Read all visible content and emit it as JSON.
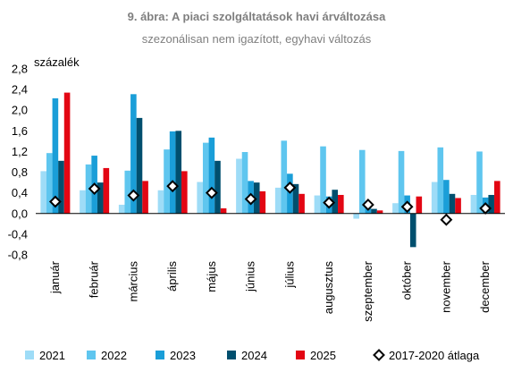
{
  "chart_data": {
    "type": "bar",
    "title": "9. ábra: A piaci szolgáltatások havi árváltozása",
    "subtitle": "szezonálisan nem igazított, egyhavi változás",
    "ylabel": "százalék",
    "ylim": [
      -0.8,
      2.8
    ],
    "yticks": [
      "2,8",
      "2,4",
      "2,0",
      "1,6",
      "1,2",
      "0,8",
      "0,4",
      "0,0",
      "-0,4",
      "-0,8"
    ],
    "yticks_values": [
      2.8,
      2.4,
      2.0,
      1.6,
      1.2,
      0.8,
      0.4,
      0.0,
      -0.4,
      -0.8
    ],
    "grid": false,
    "legend_position": "bottom",
    "categories": [
      "január",
      "február",
      "március",
      "április",
      "május",
      "június",
      "július",
      "augusztus",
      "szeptember",
      "október",
      "november",
      "december"
    ],
    "series": [
      {
        "name": "2021",
        "color": "#9edcf7",
        "values": [
          0.82,
          0.45,
          0.17,
          0.45,
          0.61,
          1.06,
          0.5,
          0.35,
          -0.1,
          0.2,
          0.61,
          0.36
        ]
      },
      {
        "name": "2022",
        "color": "#5fc6ef",
        "values": [
          1.17,
          0.95,
          0.83,
          1.24,
          1.37,
          1.19,
          1.41,
          1.3,
          1.23,
          1.21,
          1.28,
          1.2
        ]
      },
      {
        "name": "2023",
        "color": "#1a9ed8",
        "values": [
          2.23,
          1.12,
          2.31,
          1.59,
          1.47,
          0.63,
          0.77,
          0.33,
          0.17,
          0.35,
          0.65,
          0.31
        ]
      },
      {
        "name": "2024",
        "color": "#004f6e",
        "values": [
          1.02,
          0.6,
          1.85,
          1.6,
          1.02,
          0.6,
          0.57,
          0.46,
          0.09,
          -0.65,
          0.38,
          0.36
        ]
      },
      {
        "name": "2025",
        "color": "#e30613",
        "values": [
          2.34,
          0.88,
          0.63,
          0.82,
          0.1,
          0.43,
          0.38,
          0.36,
          0.06,
          0.33,
          0.3,
          0.63
        ]
      }
    ],
    "average": {
      "name": "2017-2020 átlaga",
      "values": [
        0.23,
        0.48,
        0.35,
        0.53,
        0.4,
        0.28,
        0.5,
        0.21,
        0.17,
        0.13,
        -0.12,
        0.1
      ]
    }
  }
}
